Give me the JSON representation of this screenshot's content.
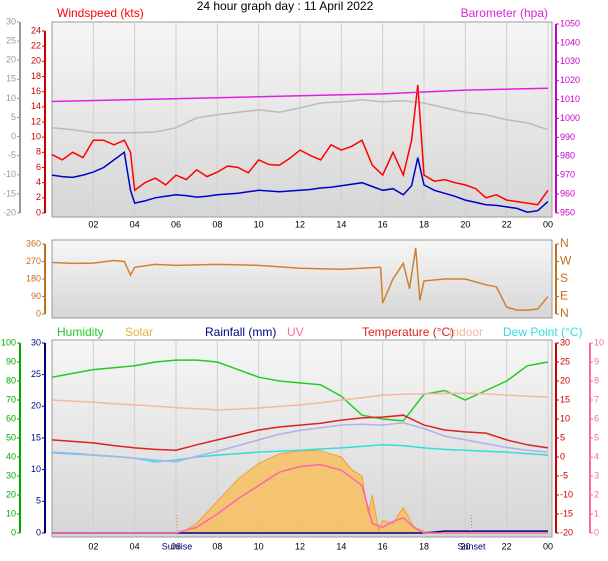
{
  "chart_data": [
    {
      "type": "line",
      "title": "24 hour graph day : 11 April 2022",
      "xlim": [
        0,
        24
      ],
      "xticks": [
        {
          "value": 2,
          "label": "02"
        },
        {
          "value": 4,
          "label": "04"
        },
        {
          "value": 6,
          "label": "06"
        },
        {
          "value": 8,
          "label": "08"
        },
        10,
        12,
        14,
        16,
        18,
        20,
        22,
        {
          "value": 24,
          "label": "00"
        }
      ],
      "grid": true,
      "axes": [
        {
          "lim": [
            -20,
            30
          ],
          "ticks": [
            30,
            25,
            20,
            15,
            10,
            5,
            0,
            -5,
            -10,
            -15,
            -20
          ],
          "color": "#999999"
        },
        {
          "lim": [
            0,
            24
          ],
          "ticks": [
            24,
            22,
            20,
            18,
            16,
            14,
            12,
            10,
            8,
            6,
            4,
            2,
            0
          ],
          "color": "#cc0000"
        },
        {
          "lim": [
            950,
            1050
          ],
          "ticks": [
            1050,
            1040,
            1030,
            1020,
            1010,
            1000,
            990,
            980,
            970,
            960,
            950
          ],
          "color": "#cc00cc"
        }
      ],
      "series": [
        {
          "color": "#bbbbbb",
          "axis": 0,
          "x": [
            0,
            1,
            2,
            3,
            4,
            5,
            6,
            7,
            8,
            9,
            10,
            11,
            12,
            13,
            14,
            15,
            16,
            17,
            18,
            19,
            20,
            21,
            22,
            23,
            24
          ],
          "values": [
            2.3,
            1.8,
            1.0,
            1.0,
            1.0,
            1.2,
            2.3,
            4.9,
            5.7,
            6.4,
            7.0,
            6.4,
            7.5,
            8.8,
            9.1,
            9.6,
            9.1,
            9.4,
            8.8,
            7.5,
            6.4,
            5.7,
            4.4,
            3.6,
            1.8
          ]
        },
        {
          "name": "Windspeed (kts)",
          "color": "#ff0000",
          "axis": 1,
          "x": [
            0,
            0.5,
            1,
            1.5,
            2,
            2.5,
            3,
            3.5,
            3.8,
            4,
            4.5,
            5,
            5.5,
            6,
            6.5,
            7,
            7.5,
            8,
            8.5,
            9,
            9.5,
            10,
            10.5,
            11,
            11.5,
            12,
            12.5,
            13,
            13.5,
            14,
            14.5,
            15,
            15.5,
            16,
            16.5,
            17,
            17.4,
            17.7,
            18,
            18.5,
            19,
            19.5,
            20,
            20.5,
            21,
            21.5,
            22,
            22.5,
            23,
            23.5,
            24
          ],
          "values": [
            7.7,
            7,
            8,
            7.3,
            9.6,
            9.6,
            9,
            9.6,
            8,
            3,
            4,
            4.6,
            3.7,
            5,
            4.4,
            5.7,
            4.8,
            5.4,
            6.2,
            6,
            5.3,
            7,
            6.4,
            6.3,
            7.2,
            8.3,
            7.6,
            7,
            9,
            8.3,
            8.8,
            9.6,
            6.3,
            5,
            8,
            5,
            9.6,
            16.9,
            5,
            4.2,
            4.4,
            4,
            3.7,
            3.2,
            2,
            2.4,
            1.7,
            1.5,
            1.3,
            1.1,
            3
          ]
        },
        {
          "color": "#0000cc",
          "axis": 1,
          "x": [
            0,
            0.5,
            1,
            1.5,
            2,
            2.5,
            3,
            3.5,
            3.8,
            4,
            4.5,
            5,
            5.5,
            6,
            6.5,
            7,
            7.5,
            8,
            8.5,
            9,
            9.5,
            10,
            10.5,
            11,
            11.5,
            12,
            12.5,
            13,
            13.5,
            14,
            14.5,
            15,
            15.5,
            16,
            16.5,
            17,
            17.4,
            17.7,
            18,
            18.5,
            19,
            19.5,
            20,
            20.5,
            21,
            21.5,
            22,
            22.5,
            23,
            23.5,
            24
          ],
          "values": [
            5,
            4.8,
            4.7,
            5,
            5.4,
            6,
            7,
            8,
            3,
            1.3,
            1.6,
            2,
            2.2,
            2.4,
            2.3,
            2.1,
            2.2,
            2.4,
            2.5,
            2.6,
            2.8,
            3,
            2.9,
            2.8,
            2.9,
            3,
            3.1,
            3.3,
            3.4,
            3.6,
            3.8,
            4,
            3.5,
            3,
            3.2,
            2.4,
            3.6,
            7.3,
            3.7,
            3,
            2.6,
            2.2,
            1.7,
            1.4,
            1.1,
            1,
            0.8,
            0.6,
            0.1,
            0.3,
            1.5
          ]
        },
        {
          "name": "Barometer (hpa)",
          "color": "#e020e0",
          "axis": 2,
          "x": [
            0,
            4,
            8,
            12,
            16,
            20,
            24
          ],
          "values": [
            1009,
            1010,
            1011,
            1012,
            1013,
            1015,
            1016
          ]
        }
      ]
    },
    {
      "type": "line",
      "xlim": [
        0,
        24
      ],
      "axes": [
        {
          "lim": [
            0,
            360
          ],
          "ticks": [
            360,
            270,
            180,
            90,
            0
          ],
          "color": "#c07020"
        },
        {
          "lim": [
            0,
            360
          ],
          "ticks": [
            {
              "value": 360,
              "label": "N"
            },
            {
              "value": 270,
              "label": "W"
            },
            {
              "value": 180,
              "label": "S"
            },
            {
              "value": 90,
              "label": "E"
            },
            {
              "value": 0,
              "label": "N"
            }
          ],
          "color": "#c07020"
        }
      ],
      "series": [
        {
          "color": "#d08030",
          "axis": 0,
          "x": [
            0,
            1,
            2,
            3,
            3.5,
            3.8,
            4,
            5,
            6,
            8,
            10,
            12,
            14,
            15,
            15.9,
            16,
            16.5,
            17,
            17.3,
            17.6,
            17.8,
            18,
            19,
            20,
            21,
            21.5,
            22,
            22.5,
            23,
            23.5,
            24
          ],
          "values": [
            265,
            260,
            262,
            275,
            270,
            200,
            240,
            255,
            250,
            255,
            250,
            235,
            230,
            235,
            240,
            57,
            180,
            260,
            130,
            340,
            70,
            170,
            180,
            180,
            150,
            140,
            35,
            20,
            20,
            25,
            90
          ]
        }
      ]
    },
    {
      "type": "line",
      "xlim": [
        0,
        24
      ],
      "xticks": [
        {
          "value": 2,
          "label": "02"
        },
        {
          "value": 4,
          "label": "04"
        },
        {
          "value": 6,
          "label": "06"
        },
        {
          "value": 8,
          "label": "08"
        },
        10,
        12,
        14,
        16,
        18,
        20,
        22,
        {
          "value": 24,
          "label": "00"
        }
      ],
      "grid": true,
      "axes": [
        {
          "lim": [
            0,
            100
          ],
          "ticks": [
            100,
            90,
            80,
            70,
            60,
            50,
            40,
            30,
            20,
            10,
            0
          ],
          "color": "#00aa00"
        },
        {
          "lim": [
            0,
            30
          ],
          "ticks": [
            30,
            25,
            20,
            15,
            10,
            5,
            0
          ],
          "color": "#000080"
        },
        {
          "lim": [
            -20,
            30
          ],
          "ticks": [
            30,
            25,
            20,
            15,
            10,
            5,
            0,
            -5,
            -10,
            -15,
            -20
          ],
          "color": "#cc0000"
        },
        {
          "lim": [
            0,
            10
          ],
          "ticks": [
            10,
            9,
            8,
            7,
            6,
            5,
            4,
            3,
            2,
            1,
            0
          ],
          "color": "#ff66aa"
        }
      ],
      "annotations": [
        {
          "text": "Sunrise",
          "x": 6.05
        },
        {
          "text": "Sunset",
          "x": 20.3
        }
      ],
      "series": [
        {
          "name": "Humidity",
          "color": "#22cc22",
          "axis": 0,
          "x": [
            0,
            1,
            2,
            3,
            4,
            5,
            6,
            7,
            8,
            9,
            10,
            11,
            12,
            13,
            14,
            15,
            16,
            17,
            18,
            19,
            20,
            21,
            22,
            23,
            24
          ],
          "values": [
            82,
            84,
            86,
            87,
            88,
            90,
            91,
            91,
            90,
            86,
            82,
            80,
            79,
            78,
            72,
            62,
            60,
            59,
            73,
            75,
            70,
            75,
            80,
            88,
            90
          ]
        },
        {
          "name": "Solar",
          "color": "#e8b040",
          "style": "area",
          "axis": 1,
          "x": [
            0,
            6,
            6.5,
            7,
            8,
            9,
            10,
            11,
            12,
            13,
            14,
            14.5,
            15,
            15.3,
            15.5,
            15.8,
            16,
            16.5,
            17,
            17.5,
            18,
            19,
            24
          ],
          "values": [
            0,
            0,
            0.5,
            1.5,
            5,
            8.5,
            11,
            12.5,
            13,
            13,
            12,
            10,
            9,
            3,
            6,
            0.5,
            2,
            1.5,
            4,
            1,
            0.2,
            0,
            0
          ]
        },
        {
          "name": "Rainfall (mm)",
          "color": "#000080",
          "axis": 1,
          "x": [
            0,
            1,
            2,
            3,
            4,
            5,
            6,
            7,
            8,
            9,
            10,
            11,
            12,
            13,
            14,
            15,
            16,
            17,
            18,
            19,
            20,
            21,
            22,
            23,
            24
          ],
          "values": [
            0,
            0,
            0,
            0,
            0,
            0,
            0,
            0,
            0,
            0,
            0,
            0,
            0,
            0,
            0,
            0,
            0,
            0,
            0,
            0.3,
            0.3,
            0.3,
            0.3,
            0.3,
            0.3
          ]
        },
        {
          "name": "UV",
          "color": "#ff66aa",
          "axis": 3,
          "x": [
            0,
            6,
            7,
            8,
            9,
            10,
            11,
            12,
            13,
            14,
            15,
            15.5,
            16,
            16.5,
            17,
            17.5,
            18,
            24
          ],
          "values": [
            0,
            0,
            0.3,
            1,
            1.8,
            2.5,
            3.2,
            3.5,
            3.6,
            3.3,
            2.5,
            0.5,
            0.3,
            0.6,
            0.8,
            0.3,
            0,
            0
          ]
        },
        {
          "name": "Temperature (°C)",
          "color": "#dd2222",
          "axis": 2,
          "x": [
            0,
            1,
            2,
            3,
            4,
            5,
            6,
            7,
            8,
            9,
            10,
            11,
            12,
            13,
            14,
            15,
            16,
            17,
            18,
            19,
            20,
            21,
            22,
            23,
            24
          ],
          "values": [
            4.5,
            4.1,
            3.7,
            3,
            2.4,
            2,
            1.8,
            3.2,
            4.5,
            5.8,
            7.1,
            7.9,
            8.4,
            8.9,
            9.7,
            10.3,
            10.5,
            11,
            8.4,
            7.1,
            6.6,
            6.3,
            4.5,
            3.2,
            2.4
          ]
        },
        {
          "name": "Indoor",
          "color": "#f4b8a0",
          "axis": 2,
          "x": [
            0,
            1,
            2,
            3,
            4,
            5,
            6,
            7,
            8,
            9,
            10,
            11,
            12,
            13,
            14,
            15,
            16,
            17,
            18,
            19,
            20,
            21,
            22,
            23,
            24
          ],
          "values": [
            15,
            14.7,
            14.4,
            14,
            13.7,
            13.4,
            13,
            12.7,
            12.4,
            12.6,
            12.9,
            13.3,
            13.7,
            14.3,
            15,
            15.6,
            16.3,
            16.5,
            16.6,
            16.7,
            16.8,
            16.6,
            16.3,
            16,
            15.8
          ]
        },
        {
          "name": "Dew Point (°C)",
          "color": "#33dddd",
          "axis": 2,
          "x": [
            0,
            1,
            2,
            3,
            4,
            5,
            6,
            7,
            8,
            9,
            10,
            11,
            12,
            13,
            14,
            15,
            16,
            17,
            18,
            19,
            20,
            21,
            22,
            23,
            24
          ],
          "values": [
            1.1,
            0.8,
            0.5,
            0.1,
            -0.3,
            -1.3,
            -0.8,
            0,
            0.5,
            0.9,
            1.3,
            1.5,
            1.8,
            2.1,
            2.4,
            2.8,
            3.2,
            3,
            2.4,
            2,
            1.8,
            1.5,
            1.3,
            0.9,
            0.5
          ]
        },
        {
          "color": "#b0b0f0",
          "axis": 2,
          "x": [
            0,
            1,
            2,
            3,
            4,
            5,
            6,
            7,
            8,
            9,
            10,
            11,
            12,
            13,
            14,
            15,
            16,
            17,
            18,
            19,
            20,
            21,
            22,
            23,
            24
          ],
          "values": [
            1.3,
            1,
            0.6,
            0.2,
            -0.3,
            -0.8,
            -1.3,
            0.2,
            1.5,
            3,
            4.5,
            6,
            7,
            7.7,
            8.4,
            8.6,
            8.4,
            9,
            7.5,
            5.5,
            4.5,
            3.5,
            2.5,
            1.8,
            1.3
          ]
        }
      ]
    }
  ]
}
